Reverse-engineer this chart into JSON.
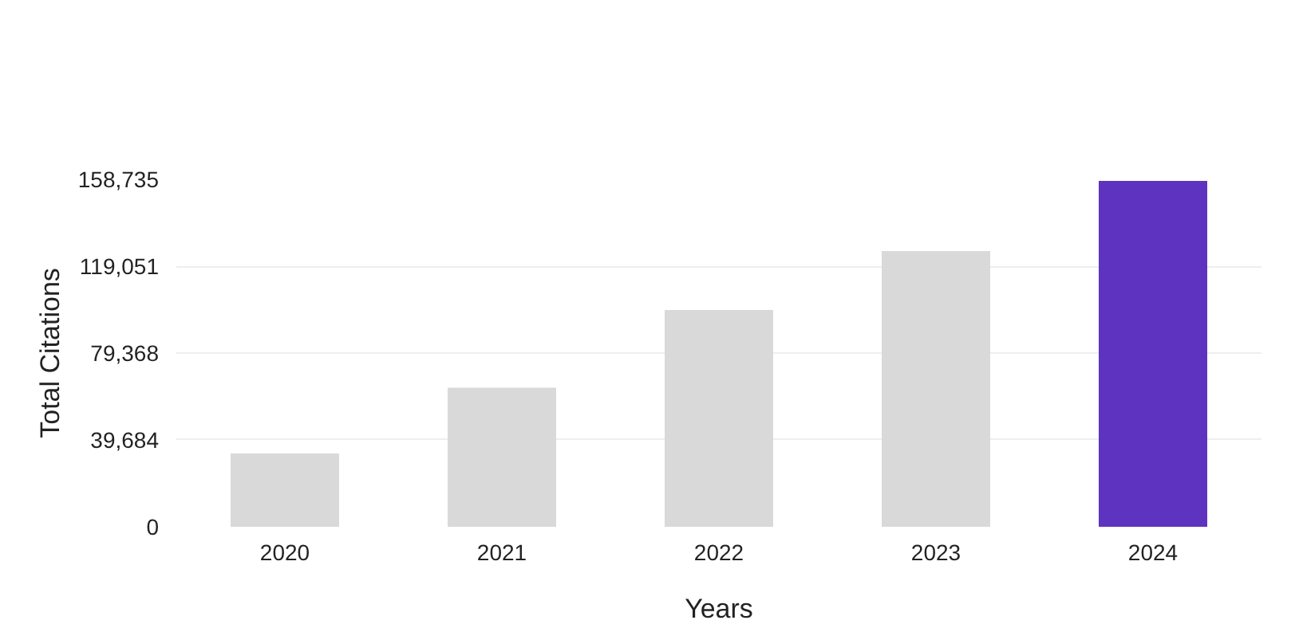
{
  "chart_data": {
    "type": "bar",
    "xlabel": "Years",
    "ylabel": "Total Citations",
    "categories": [
      "2020",
      "2021",
      "2022",
      "2023",
      "2024"
    ],
    "values": [
      33500,
      63500,
      99000,
      126000,
      158000
    ],
    "colors": [
      "#d9d9d9",
      "#d9d9d9",
      "#d9d9d9",
      "#d9d9d9",
      "#5e33bf"
    ],
    "ylim": [
      0,
      158735
    ],
    "yticks": [
      0,
      {
        "value": 39684,
        "label": "39,684"
      },
      {
        "value": 79368,
        "label": "79,368"
      },
      {
        "value": 119051,
        "label": "119,051"
      },
      {
        "value": 158735,
        "label": "158,735"
      }
    ],
    "grid": "y"
  }
}
